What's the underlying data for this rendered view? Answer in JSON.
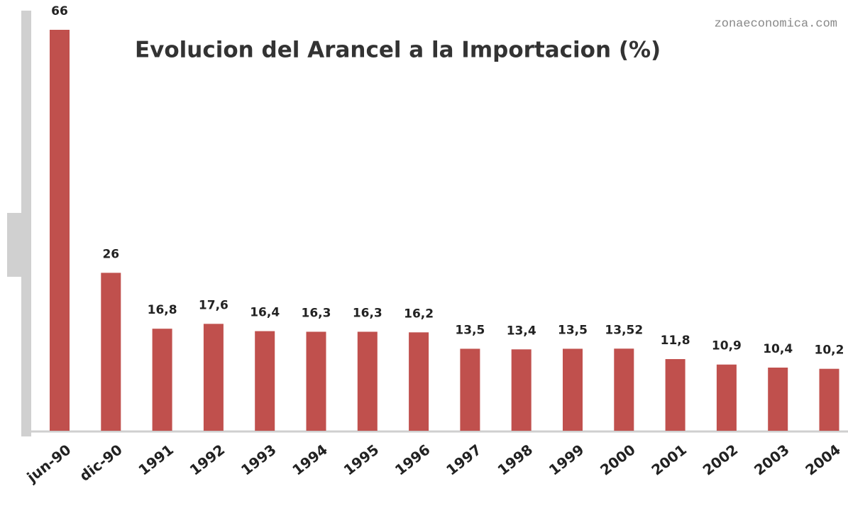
{
  "chart_data": {
    "type": "bar",
    "title": "Evolucion del Arancel a la Importacion (%)",
    "annotation": "zonaeconomica.com",
    "categories": [
      "jun-90",
      "dic-90",
      "1991",
      "1992",
      "1993",
      "1994",
      "1995",
      "1996",
      "1997",
      "1998",
      "1999",
      "2000",
      "2001",
      "2002",
      "2003",
      "2004"
    ],
    "values": [
      66,
      26,
      16.8,
      17.6,
      16.4,
      16.3,
      16.3,
      16.2,
      13.5,
      13.4,
      13.5,
      13.52,
      11.8,
      10.9,
      10.4,
      10.2
    ],
    "value_labels": [
      "66",
      "26",
      "16,8",
      "17,6",
      "16,4",
      "16,3",
      "16,3",
      "16,2",
      "13,5",
      "13,4",
      "13,5",
      "13,52",
      "11,8",
      "10,9",
      "10,4",
      "10,2"
    ],
    "color": "#c0504d"
  }
}
